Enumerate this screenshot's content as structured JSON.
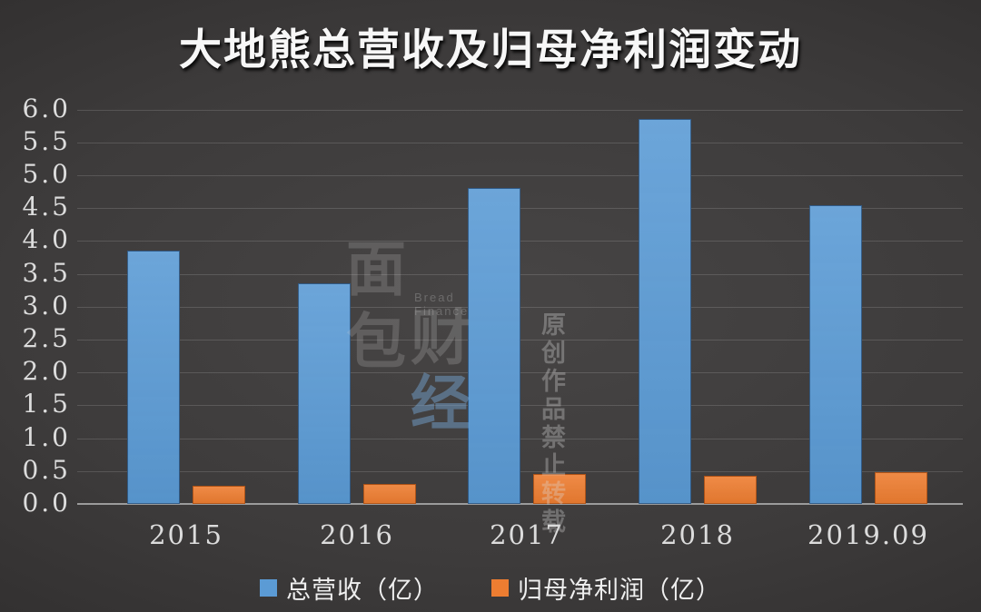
{
  "title": "大地熊总营收及归母净利润变动",
  "colors": {
    "revenue": "#5B9BD5",
    "profit": "#ED7D31",
    "background_center": "#474545",
    "background_edge": "#232222",
    "gridline": "rgba(255,255,255,0.14)",
    "axis_line": "#9B9B9B",
    "text": "#DCDCDC"
  },
  "watermark": {
    "logo_char_top": "面",
    "logo_char_bottom": "包",
    "logo_char_cai": "财",
    "logo_char_jing": "经",
    "logo_subtext": "Bread Finance",
    "notice_line1": "原创作品",
    "notice_line2": "禁止转载"
  },
  "chart_data": {
    "type": "bar",
    "title": "大地熊总营收及归母净利润变动",
    "categories": [
      "2015",
      "2016",
      "2017",
      "2018",
      "2019.09"
    ],
    "series": [
      {
        "name": "总营收（亿）",
        "color": "#5B9BD5",
        "values": [
          3.85,
          3.35,
          4.8,
          5.85,
          4.55
        ]
      },
      {
        "name": "归母净利润（亿）",
        "color": "#ED7D31",
        "values": [
          0.27,
          0.31,
          0.46,
          0.43,
          0.48
        ]
      }
    ],
    "xlabel": "",
    "ylabel": "",
    "ylim": [
      0.0,
      6.0
    ],
    "ytick_step": 0.5,
    "ytick_format_decimals": 1,
    "grid": true,
    "legend_position": "bottom"
  }
}
